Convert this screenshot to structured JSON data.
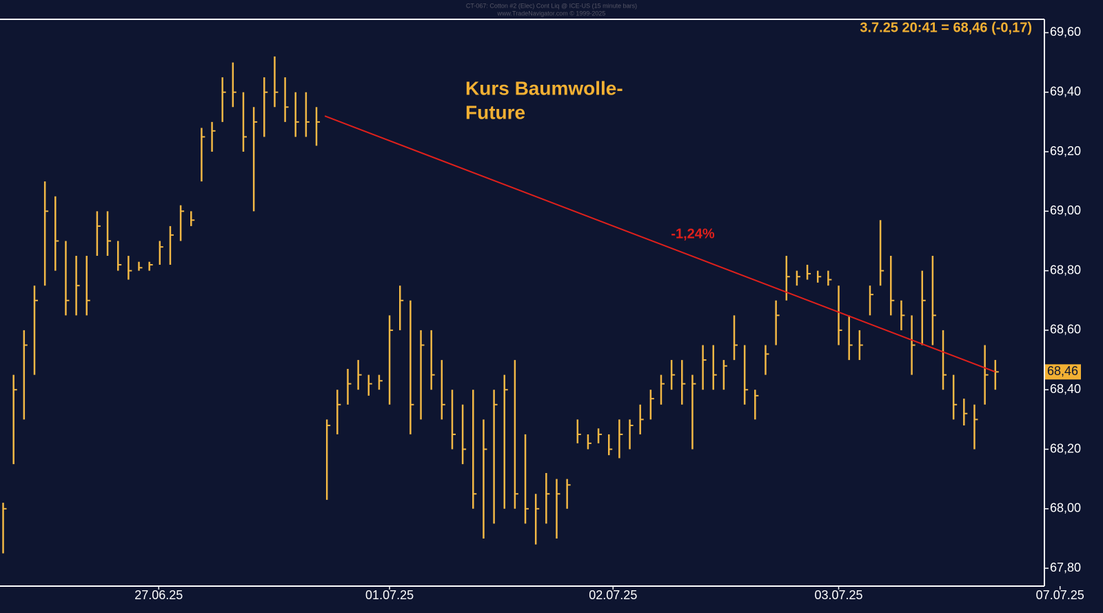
{
  "chart_data": {
    "type": "hlc",
    "header": [
      "CT-067: Cotton #2 (Elec) Cont Liq @ ICE-US (15 minute bars)",
      "www.TradeNavigator.com © 1999-2025"
    ],
    "title_lines": [
      "Kurs Baumwolle-",
      "Future"
    ],
    "info": "3.7.25 20:41 = 68,46 (-0,17)",
    "last_price": {
      "value": 68.46,
      "label": "68,46"
    },
    "color": "#f2b845",
    "x": [
      0,
      1,
      2,
      3,
      4,
      5,
      6,
      7,
      8,
      9,
      10,
      11,
      12,
      13,
      14,
      15,
      16,
      17,
      18,
      19,
      20,
      21,
      22,
      23,
      24,
      25,
      26,
      27,
      28,
      29,
      30,
      31,
      32,
      33,
      34,
      35,
      36,
      37,
      38,
      39,
      40,
      41,
      42,
      43,
      44,
      45,
      46,
      47,
      48,
      49,
      50,
      51,
      52,
      53,
      54,
      55,
      56,
      57,
      58,
      59,
      60,
      61,
      62,
      63,
      64,
      65,
      66,
      67,
      68,
      69,
      70,
      71,
      72,
      73,
      74,
      75,
      76,
      77,
      78,
      79,
      80,
      81,
      82,
      83,
      84,
      85,
      86,
      87,
      88,
      89,
      90,
      91,
      92,
      93,
      94,
      95
    ],
    "high": [
      68.02,
      68.45,
      68.6,
      68.75,
      69.1,
      69.05,
      68.9,
      68.85,
      68.85,
      69.0,
      69.0,
      68.9,
      68.85,
      68.83,
      68.83,
      68.9,
      68.95,
      69.02,
      69.0,
      69.28,
      69.3,
      69.45,
      69.5,
      69.4,
      69.35,
      69.45,
      69.52,
      69.45,
      69.4,
      69.4,
      69.35,
      68.3,
      68.4,
      68.47,
      68.5,
      68.45,
      68.45,
      68.65,
      68.75,
      68.7,
      68.6,
      68.6,
      68.5,
      68.4,
      68.35,
      68.4,
      68.3,
      68.4,
      68.45,
      68.5,
      68.25,
      68.05,
      68.12,
      68.1,
      68.1,
      68.3,
      68.25,
      68.27,
      68.25,
      68.3,
      68.3,
      68.35,
      68.4,
      68.45,
      68.5,
      68.5,
      68.45,
      68.55,
      68.55,
      68.5,
      68.65,
      68.55,
      68.4,
      68.55,
      68.7,
      68.85,
      68.8,
      68.82,
      68.8,
      68.8,
      68.75,
      68.65,
      68.6,
      68.75,
      68.97,
      68.85,
      68.7,
      68.65,
      68.8,
      68.85,
      68.6,
      68.45,
      68.37,
      68.35,
      68.55,
      68.5
    ],
    "low": [
      67.85,
      68.15,
      68.3,
      68.45,
      68.75,
      68.8,
      68.65,
      68.65,
      68.65,
      68.85,
      68.85,
      68.8,
      68.77,
      68.8,
      68.8,
      68.82,
      68.82,
      68.9,
      68.95,
      69.1,
      69.2,
      69.3,
      69.35,
      69.2,
      69.0,
      69.25,
      69.35,
      69.3,
      69.25,
      69.25,
      69.22,
      68.03,
      68.25,
      68.35,
      68.4,
      68.38,
      68.4,
      68.35,
      68.6,
      68.25,
      68.3,
      68.4,
      68.3,
      68.2,
      68.15,
      68.0,
      67.9,
      67.95,
      68.0,
      68.0,
      67.95,
      67.88,
      67.95,
      67.9,
      68.0,
      68.22,
      68.2,
      68.22,
      68.18,
      68.17,
      68.2,
      68.25,
      68.3,
      68.35,
      68.4,
      68.35,
      68.2,
      68.4,
      68.4,
      68.4,
      68.5,
      68.35,
      68.3,
      68.45,
      68.55,
      68.7,
      68.75,
      68.77,
      68.76,
      68.75,
      68.55,
      68.5,
      68.5,
      68.65,
      68.75,
      68.65,
      68.6,
      68.45,
      68.55,
      68.55,
      68.4,
      68.3,
      68.28,
      68.2,
      68.35,
      68.4
    ],
    "close": [
      68.0,
      68.4,
      68.55,
      68.7,
      69.0,
      68.9,
      68.7,
      68.75,
      68.7,
      68.95,
      68.9,
      68.82,
      68.8,
      68.81,
      68.82,
      68.88,
      68.92,
      69.0,
      68.97,
      69.25,
      69.27,
      69.4,
      69.4,
      69.25,
      69.3,
      69.4,
      69.4,
      69.35,
      69.3,
      69.3,
      69.3,
      68.28,
      68.35,
      68.42,
      68.45,
      68.42,
      68.43,
      68.6,
      68.7,
      68.35,
      68.55,
      68.45,
      68.35,
      68.25,
      68.2,
      68.05,
      68.2,
      68.35,
      68.4,
      68.05,
      68.0,
      68.0,
      68.05,
      68.05,
      68.08,
      68.25,
      68.22,
      68.25,
      68.2,
      68.25,
      68.28,
      68.3,
      68.37,
      68.42,
      68.45,
      68.42,
      68.42,
      68.5,
      68.45,
      68.48,
      68.55,
      68.4,
      68.38,
      68.52,
      68.65,
      68.78,
      68.78,
      68.79,
      68.78,
      68.77,
      68.6,
      68.55,
      68.55,
      68.72,
      68.8,
      68.7,
      68.65,
      68.55,
      68.7,
      68.65,
      68.45,
      68.35,
      68.32,
      68.3,
      68.45,
      68.46
    ],
    "xlim": [
      -0.3,
      99.7
    ],
    "xticks": [
      {
        "value": 14.9,
        "label": "27.06.25"
      },
      {
        "value": 37.0,
        "label": "01.07.25"
      },
      {
        "value": 58.4,
        "label": "02.07.25"
      },
      {
        "value": 80.0,
        "label": "03.07.25"
      },
      {
        "value": 101.2,
        "label": "07.07.25"
      }
    ],
    "ylim": [
      67.74,
      69.645
    ],
    "yticks": [
      {
        "value": 67.8,
        "label": "67,80"
      },
      {
        "value": 68.0,
        "label": "68,00"
      },
      {
        "value": 68.2,
        "label": "68,20"
      },
      {
        "value": 68.4,
        "label": "68,40"
      },
      {
        "value": 68.6,
        "label": "68,60"
      },
      {
        "value": 68.8,
        "label": "68,80"
      },
      {
        "value": 69.0,
        "label": "69,00"
      },
      {
        "value": 69.2,
        "label": "69,20"
      },
      {
        "value": 69.4,
        "label": "69,40"
      },
      {
        "value": 69.6,
        "label": "69,60"
      }
    ],
    "trendline": {
      "x": [
        30.8,
        95
      ],
      "y": [
        69.32,
        68.46
      ],
      "color": "#e0201b",
      "label": "-1,24%"
    }
  }
}
